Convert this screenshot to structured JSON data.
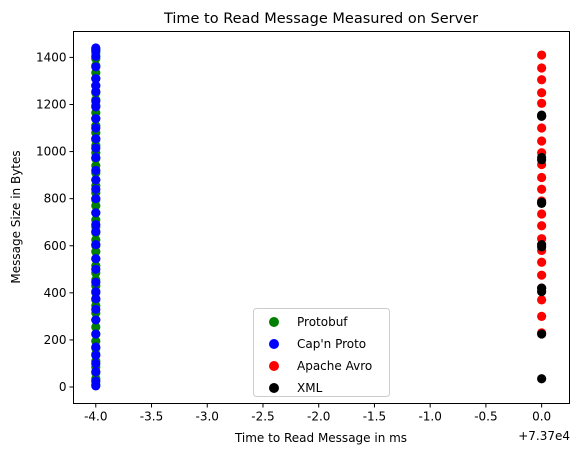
{
  "chart_data": {
    "type": "scatter",
    "title": "Time to Read Message Measured on Server",
    "xlabel": "Time to Read Message in ms",
    "ylabel": "Message Size in Bytes",
    "x_offset_text": "+7.37e4",
    "xlim": [
      -4.2,
      0.25
    ],
    "ylim": [
      -70,
      1510
    ],
    "x_ticks": [
      -4.0,
      -3.5,
      -3.0,
      -2.5,
      -2.0,
      -1.5,
      -1.0,
      -0.5,
      0.0
    ],
    "x_tick_labels": [
      "-4.0",
      "-3.5",
      "-3.0",
      "-2.5",
      "-2.0",
      "-1.5",
      "-1.0",
      "-0.5",
      "0.0"
    ],
    "y_ticks": [
      0,
      200,
      400,
      600,
      800,
      1000,
      1200,
      1400
    ],
    "y_tick_labels": [
      "0",
      "200",
      "400",
      "600",
      "800",
      "1000",
      "1200",
      "1400"
    ],
    "grid": false,
    "legend_position": "bottom-center",
    "series": [
      {
        "name": "Protobuf",
        "color": "#008000",
        "x": -4.0,
        "y": [
          10,
          35,
          60,
          85,
          110,
          140,
          165,
          195,
          225,
          255,
          285,
          315,
          345,
          370,
          400,
          430,
          455,
          485,
          515,
          545,
          575,
          600,
          625,
          655,
          680,
          710,
          740,
          770,
          795,
          825,
          855,
          880,
          910,
          940,
          970,
          995,
          1025,
          1050,
          1080,
          1110,
          1140,
          1165,
          1195,
          1220,
          1250,
          1280,
          1310,
          1335,
          1365,
          1395,
          1420,
          1435
        ]
      },
      {
        "name": "Cap'n Proto",
        "color": "#0000ff",
        "x": -4.0,
        "y": [
          5,
          25,
          65,
          100,
          135,
          170,
          225,
          285,
          330,
          375,
          405,
          445,
          500,
          545,
          605,
          660,
          690,
          740,
          800,
          840,
          880,
          920,
          975,
          1015,
          1055,
          1100,
          1140,
          1190,
          1215,
          1255,
          1280,
          1310,
          1360,
          1405,
          1430,
          1440
        ]
      },
      {
        "name": "Apache Avro",
        "color": "#ff0000",
        "x": 0.0,
        "y": [
          230,
          300,
          370,
          420,
          475,
          530,
          580,
          630,
          685,
          735,
          790,
          840,
          890,
          945,
          995,
          1045,
          1100,
          1150,
          1205,
          1250,
          1305,
          1355,
          1410
        ]
      },
      {
        "name": "XML",
        "color": "#000000",
        "x": 0.0,
        "y": [
          35,
          225,
          405,
          420,
          595,
          605,
          780,
          785,
          965,
          975,
          1150,
          1155
        ]
      }
    ]
  }
}
